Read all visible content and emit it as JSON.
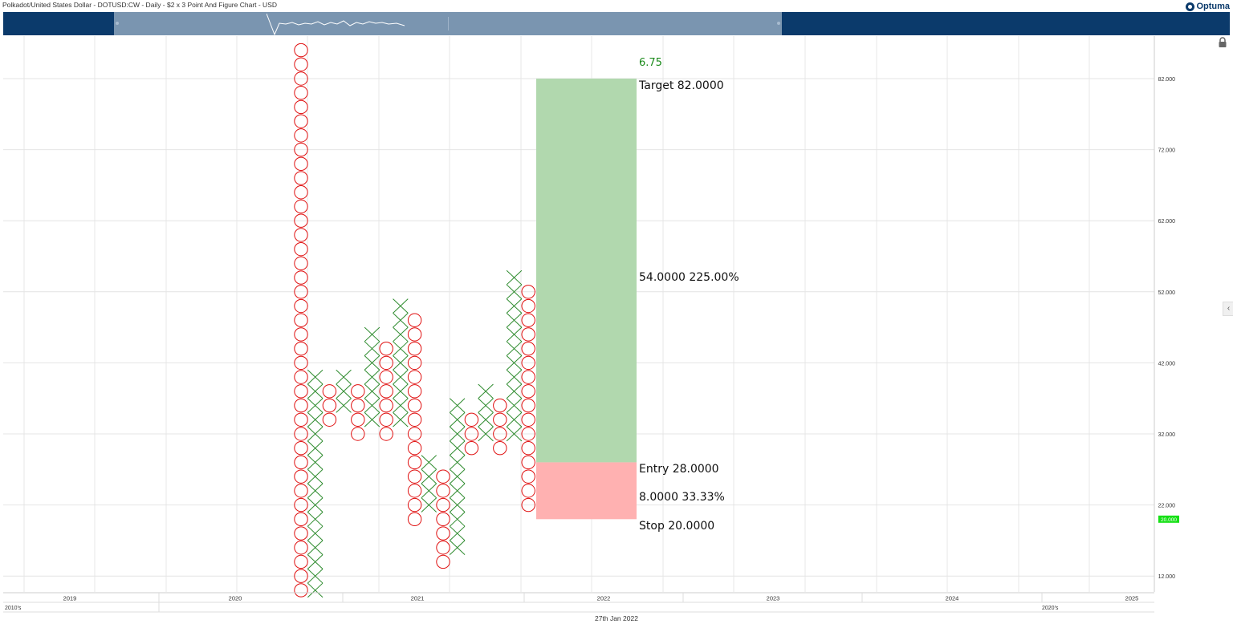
{
  "header": {
    "title": "Polkadot/United States Dollar - DOTUSD:CW - Daily - $2 x 3 Point And Figure Chart - USD",
    "brand": "Optuma"
  },
  "footer": {
    "date": "27th Jan 2022"
  },
  "chart_data": {
    "type": "point-and-figure",
    "title": "Polkadot/United States Dollar - DOTUSD:CW - Daily - $2 x 3 Point And Figure Chart - USD",
    "box_size": 2,
    "reversal": 3,
    "y_ticks": [
      "82.000",
      "72.000",
      "62.000",
      "52.000",
      "42.000",
      "32.000",
      "22.000",
      "12.000"
    ],
    "year_labels": [
      "2019",
      "2020",
      "2021",
      "2022",
      "2023",
      "2024",
      "2025"
    ],
    "decade_labels": [
      "2010's",
      "2020's"
    ],
    "current_price": "20.000",
    "columns": [
      {
        "type": "O",
        "high": 88,
        "low": 10
      },
      {
        "type": "X",
        "low": 10,
        "high": 40
      },
      {
        "type": "O",
        "high": 38,
        "low": 34
      },
      {
        "type": "X",
        "low": 36,
        "high": 40
      },
      {
        "type": "O",
        "high": 38,
        "low": 32
      },
      {
        "type": "X",
        "low": 34,
        "high": 46
      },
      {
        "type": "O",
        "high": 44,
        "low": 32
      },
      {
        "type": "X",
        "low": 34,
        "high": 50
      },
      {
        "type": "O",
        "high": 48,
        "low": 20
      },
      {
        "type": "X",
        "low": 22,
        "high": 28
      },
      {
        "type": "O",
        "high": 26,
        "low": 14
      },
      {
        "type": "X",
        "low": 16,
        "high": 36
      },
      {
        "type": "O",
        "high": 34,
        "low": 30
      },
      {
        "type": "X",
        "low": 32,
        "high": 38
      },
      {
        "type": "O",
        "high": 36,
        "low": 30
      },
      {
        "type": "X",
        "low": 32,
        "high": 54
      },
      {
        "type": "O",
        "high": 52,
        "low": 22
      }
    ],
    "projection": {
      "top_value": "6.75",
      "target_label": "Target",
      "target": "82.0000",
      "reward": "54.0000",
      "reward_pct": "225.00%",
      "entry_label": "Entry",
      "entry": "28.0000",
      "risk": "8.0000",
      "risk_pct": "33.33%",
      "stop_label": "Stop",
      "stop": "20.0000"
    },
    "colors": {
      "x": "#2e8b2e",
      "o": "#e01010",
      "reward": "#b1d8ae",
      "risk": "#ffb1b1",
      "current": "#16e016",
      "nav": "#0b3a6b"
    }
  }
}
